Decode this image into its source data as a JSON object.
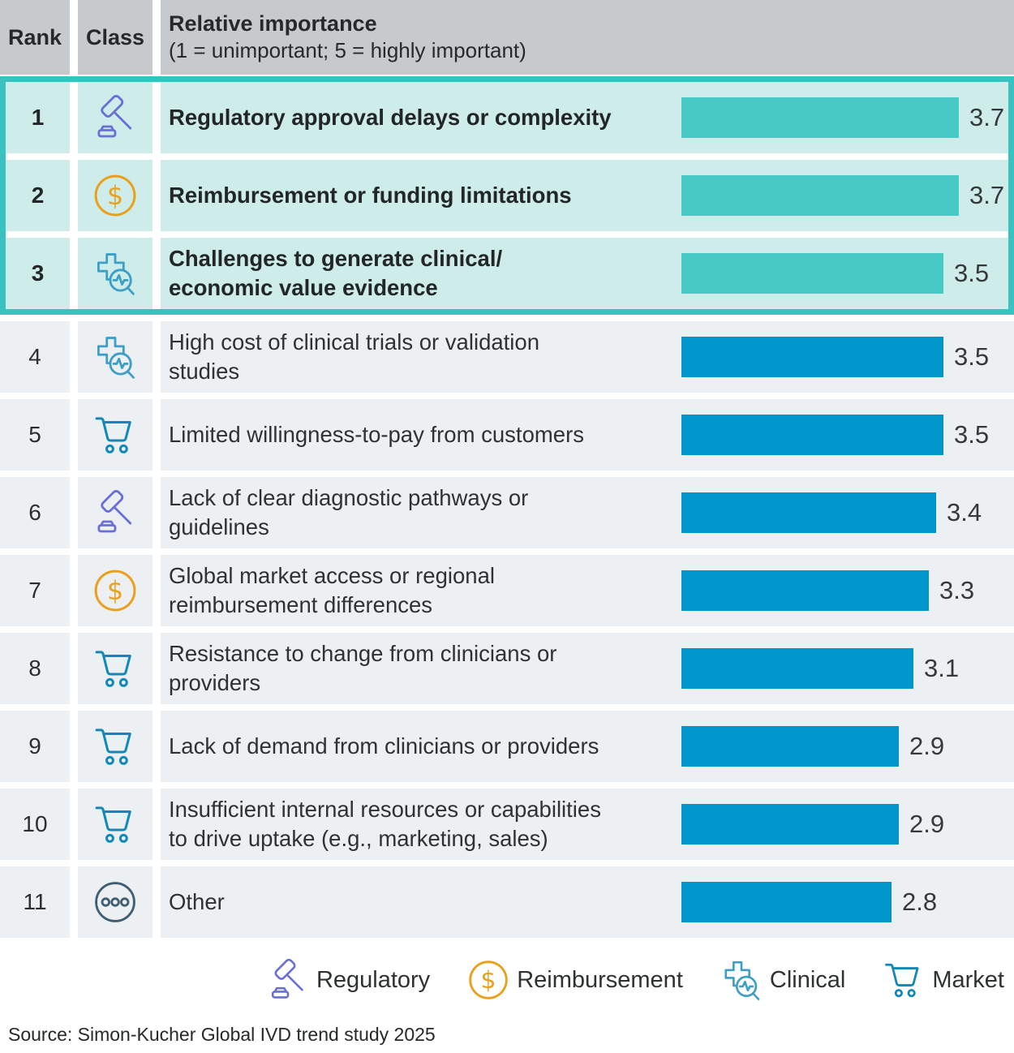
{
  "header": {
    "rank_label": "Rank",
    "class_label": "Class",
    "title": "Relative importance",
    "subtitle": "(1 = unimportant; 5 = highly important)"
  },
  "rows": [
    {
      "rank": "1",
      "class_name": "regulatory",
      "label": "Regulatory approval delays or complexity",
      "value": 3.7,
      "value_label": "3.7",
      "highlighted": true
    },
    {
      "rank": "2",
      "class_name": "reimbursement",
      "label": "Reimbursement or funding limitations",
      "value": 3.7,
      "value_label": "3.7",
      "highlighted": true
    },
    {
      "rank": "3",
      "class_name": "clinical",
      "label": "Challenges to generate clinical/\neconomic value evidence",
      "value": 3.5,
      "value_label": "3.5",
      "highlighted": true
    },
    {
      "rank": "4",
      "class_name": "clinical",
      "label": "High cost of clinical trials or validation\nstudies",
      "value": 3.5,
      "value_label": "3.5",
      "highlighted": false
    },
    {
      "rank": "5",
      "class_name": "market",
      "label": "Limited willingness-to-pay from customers",
      "value": 3.5,
      "value_label": "3.5",
      "highlighted": false
    },
    {
      "rank": "6",
      "class_name": "regulatory",
      "label": "Lack of clear diagnostic pathways or\nguidelines",
      "value": 3.4,
      "value_label": "3.4",
      "highlighted": false
    },
    {
      "rank": "7",
      "class_name": "reimbursement",
      "label": "Global market access or regional\nreimbursement differences",
      "value": 3.3,
      "value_label": "3.3",
      "highlighted": false
    },
    {
      "rank": "8",
      "class_name": "market",
      "label": "Resistance to change from clinicians or\nproviders",
      "value": 3.1,
      "value_label": "3.1",
      "highlighted": false
    },
    {
      "rank": "9",
      "class_name": "market",
      "label": "Lack of demand from clinicians or providers",
      "value": 2.9,
      "value_label": "2.9",
      "highlighted": false
    },
    {
      "rank": "10",
      "class_name": "market",
      "label": "Insufficient internal resources or capabilities\nto drive uptake (e.g., marketing, sales)",
      "value": 2.9,
      "value_label": "2.9",
      "highlighted": false
    },
    {
      "rank": "11",
      "class_name": "other",
      "label": "Other",
      "value": 2.8,
      "value_label": "2.8",
      "highlighted": false
    }
  ],
  "legend": [
    {
      "name": "regulatory",
      "label": "Regulatory"
    },
    {
      "name": "reimbursement",
      "label": "Reimbursement"
    },
    {
      "name": "clinical",
      "label": "Clinical"
    },
    {
      "name": "market",
      "label": "Market"
    }
  ],
  "meta": {
    "source_note": "Source: Simon-Kucher Global IVD trend study 2025"
  },
  "colors": {
    "header_bg": "#c6cacd",
    "teal_border": "#38c3c0",
    "teal_row_bg": "#cdecea",
    "teal_bar": "#47cac6",
    "row_bg": "#edf0f2",
    "blue_bar": "#0096cb",
    "icon_regulatory": "#6a6fd6",
    "icon_reimbursement": "#e9a11d",
    "icon_clinical": "#3d9ec6",
    "icon_market": "#1287b8",
    "icon_other": "#3f5e73"
  },
  "chart_data": {
    "type": "bar",
    "orientation": "horizontal",
    "title": "Relative importance (1 = unimportant; 5 = highly important)",
    "categories": [
      "Regulatory approval delays or complexity",
      "Reimbursement or funding limitations",
      "Challenges to generate clinical/economic value evidence",
      "High cost of clinical trials or validation studies",
      "Limited willingness-to-pay from customers",
      "Lack of clear diagnostic pathways or guidelines",
      "Global market access or regional reimbursement differences",
      "Resistance to change from clinicians or providers",
      "Lack of demand from clinicians or providers",
      "Insufficient internal resources or capabilities to drive uptake (e.g., marketing, sales)",
      "Other"
    ],
    "values": [
      3.7,
      3.7,
      3.5,
      3.5,
      3.5,
      3.4,
      3.3,
      3.1,
      2.9,
      2.9,
      2.8
    ],
    "ranks": [
      1,
      2,
      3,
      4,
      5,
      6,
      7,
      8,
      9,
      10,
      11
    ],
    "classes": [
      "Regulatory",
      "Reimbursement",
      "Clinical",
      "Clinical",
      "Market",
      "Regulatory",
      "Reimbursement",
      "Market",
      "Market",
      "Market",
      "Other"
    ],
    "highlighted_ranks": [
      1,
      2,
      3
    ],
    "xlim": [
      0,
      4
    ],
    "legend_entries": [
      "Regulatory",
      "Reimbursement",
      "Clinical",
      "Market"
    ],
    "legend_position": "bottom",
    "grid": false,
    "source": "Source: Simon-Kucher Global IVD trend study 2025"
  }
}
